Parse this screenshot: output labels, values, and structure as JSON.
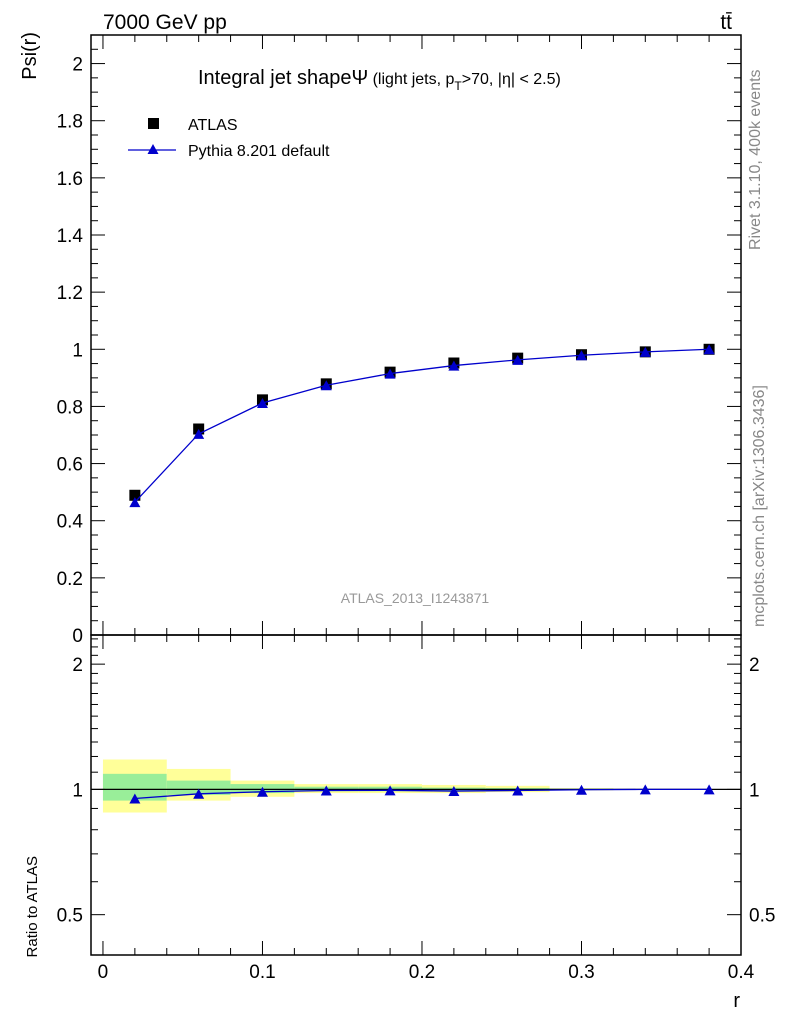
{
  "header": {
    "energy_label": "7000 GeV pp",
    "process_label": "tt̄",
    "side_rivet": "Rivet 3.1.10,  400k events",
    "side_mcplots": "mcplots.cern.ch [arXiv:1306.3436]",
    "analysis_id": "ATLAS_2013_I1243871"
  },
  "chart_data": [
    {
      "type": "scatter",
      "title_main": "Integral jet shape",
      "title_symbol": "Ψ",
      "title_detail_1": " (light jets, p",
      "title_sub": "T",
      "title_detail_2": ">70, |η| < 2.5)",
      "xlabel": "r",
      "ylabel": "Psi(r)",
      "xlim": [
        -0.0075,
        0.4
      ],
      "ylim": [
        0,
        2.1
      ],
      "yticks": [
        0,
        0.2,
        0.4,
        0.6,
        0.8,
        1,
        1.2,
        1.4,
        1.6,
        1.8,
        2
      ],
      "ytick_labels": [
        "0",
        "0.2",
        "0.4",
        "0.6",
        "0.8",
        "1",
        "1.2",
        "1.4",
        "1.6",
        "1.8",
        "2"
      ],
      "legend_position": "top-left",
      "series": [
        {
          "name": "ATLAS",
          "marker": "square",
          "color": "#000000",
          "x": [
            0.02,
            0.06,
            0.1,
            0.14,
            0.18,
            0.22,
            0.26,
            0.3,
            0.34,
            0.38
          ],
          "values": [
            0.489,
            0.721,
            0.823,
            0.879,
            0.92,
            0.952,
            0.969,
            0.981,
            0.991,
            1.0
          ]
        },
        {
          "name": "Pythia 8.201 default",
          "marker": "triangle",
          "color": "#0000cc",
          "x": [
            0.02,
            0.06,
            0.1,
            0.14,
            0.18,
            0.22,
            0.26,
            0.3,
            0.34,
            0.38
          ],
          "values": [
            0.465,
            0.704,
            0.812,
            0.874,
            0.915,
            0.943,
            0.963,
            0.979,
            0.991,
            1.0
          ]
        }
      ]
    },
    {
      "type": "scatter",
      "ylabel": "Ratio to ATLAS",
      "xlabel": "r",
      "xlim": [
        -0.0075,
        0.4
      ],
      "ylim": [
        0.4,
        2.35
      ],
      "scale": "log",
      "yticks": [
        0.5,
        1,
        2
      ],
      "ytick_labels": [
        "0.5",
        "1",
        "2"
      ],
      "xticks": [
        0,
        0.1,
        0.2,
        0.3,
        0.4
      ],
      "xtick_labels": [
        "0",
        "0.1",
        "0.2",
        "0.3",
        "0.4"
      ],
      "bands": [
        {
          "xlo": 0.0,
          "xhi": 0.04,
          "stat_lo": 0.94,
          "stat_hi": 1.09,
          "tot_lo": 0.88,
          "tot_hi": 1.18
        },
        {
          "xlo": 0.04,
          "xhi": 0.08,
          "stat_lo": 0.97,
          "stat_hi": 1.05,
          "tot_lo": 0.94,
          "tot_hi": 1.12
        },
        {
          "xlo": 0.08,
          "xhi": 0.12,
          "stat_lo": 0.98,
          "stat_hi": 1.03,
          "tot_lo": 0.96,
          "tot_hi": 1.05
        },
        {
          "xlo": 0.12,
          "xhi": 0.16,
          "stat_lo": 0.99,
          "stat_hi": 1.015,
          "tot_lo": 0.98,
          "tot_hi": 1.03
        },
        {
          "xlo": 0.16,
          "xhi": 0.2,
          "stat_lo": 0.99,
          "stat_hi": 1.015,
          "tot_lo": 0.98,
          "tot_hi": 1.03
        },
        {
          "xlo": 0.2,
          "xhi": 0.24,
          "stat_lo": 0.99,
          "stat_hi": 1.01,
          "tot_lo": 0.98,
          "tot_hi": 1.025
        },
        {
          "xlo": 0.24,
          "xhi": 0.28,
          "stat_lo": 0.993,
          "stat_hi": 1.008,
          "tot_lo": 0.985,
          "tot_hi": 1.02
        },
        {
          "xlo": 0.28,
          "xhi": 0.32,
          "stat_lo": 0.997,
          "stat_hi": 1.004,
          "tot_lo": 0.995,
          "tot_hi": 1.006
        },
        {
          "xlo": 0.32,
          "xhi": 0.36,
          "stat_lo": 0.998,
          "stat_hi": 1.002,
          "tot_lo": 0.997,
          "tot_hi": 1.003
        },
        {
          "xlo": 0.36,
          "xhi": 0.4,
          "stat_lo": 1.0,
          "stat_hi": 1.0,
          "tot_lo": 1.0,
          "tot_hi": 1.0
        }
      ],
      "stat_color": "#99ee99",
      "tot_color": "#ffff99",
      "series": [
        {
          "name": "Pythia 8.201 default / ATLAS",
          "marker": "triangle",
          "color": "#0000cc",
          "x": [
            0.02,
            0.06,
            0.1,
            0.14,
            0.18,
            0.22,
            0.26,
            0.3,
            0.34,
            0.38
          ],
          "values": [
            0.951,
            0.976,
            0.987,
            0.994,
            0.995,
            0.991,
            0.994,
            0.998,
            1.0,
            1.0
          ]
        }
      ]
    }
  ]
}
